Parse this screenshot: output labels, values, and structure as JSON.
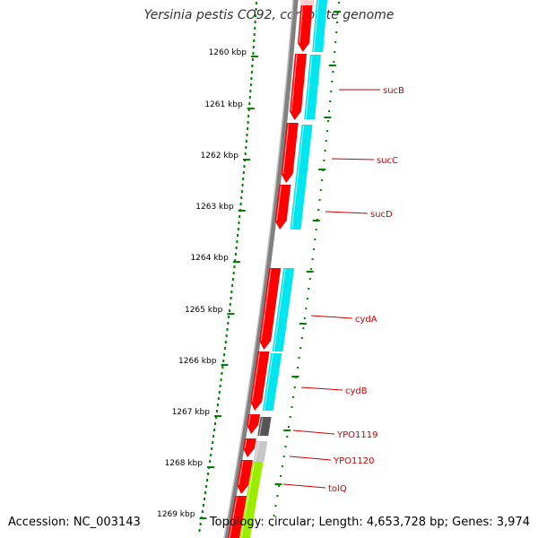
{
  "title": "Yersinia pestis CO92, complete genome",
  "accession": "Accession: NC_003143",
  "topology": "Topology: circular; Length: 4,653,728 bp; Genes: 3,974",
  "colors": {
    "forward_cds": "#ff0000",
    "reverse_cds": "#00e5ee",
    "backbone": "#808080",
    "tick": "#008000",
    "label": "#cc0000",
    "gray_gene": "#555555",
    "lightgray_gene": "#c8c8c8",
    "green_gene": "#99ee00"
  },
  "ticks": [
    {
      "label": "1260 kbp"
    },
    {
      "label": "1261 kbp"
    },
    {
      "label": "1262 kbp"
    },
    {
      "label": "1263 kbp"
    },
    {
      "label": "1264 kbp"
    },
    {
      "label": "1265 kbp"
    },
    {
      "label": "1266 kbp"
    },
    {
      "label": "1267 kbp"
    },
    {
      "label": "1268 kbp"
    },
    {
      "label": "1269 kbp"
    }
  ],
  "genes": [
    {
      "label": "sucB"
    },
    {
      "label": "sucC"
    },
    {
      "label": "sucD"
    },
    {
      "label": "cydA"
    },
    {
      "label": "cydB"
    },
    {
      "label": "YPO1119"
    },
    {
      "label": "YPO1120"
    },
    {
      "label": "tolQ"
    }
  ]
}
